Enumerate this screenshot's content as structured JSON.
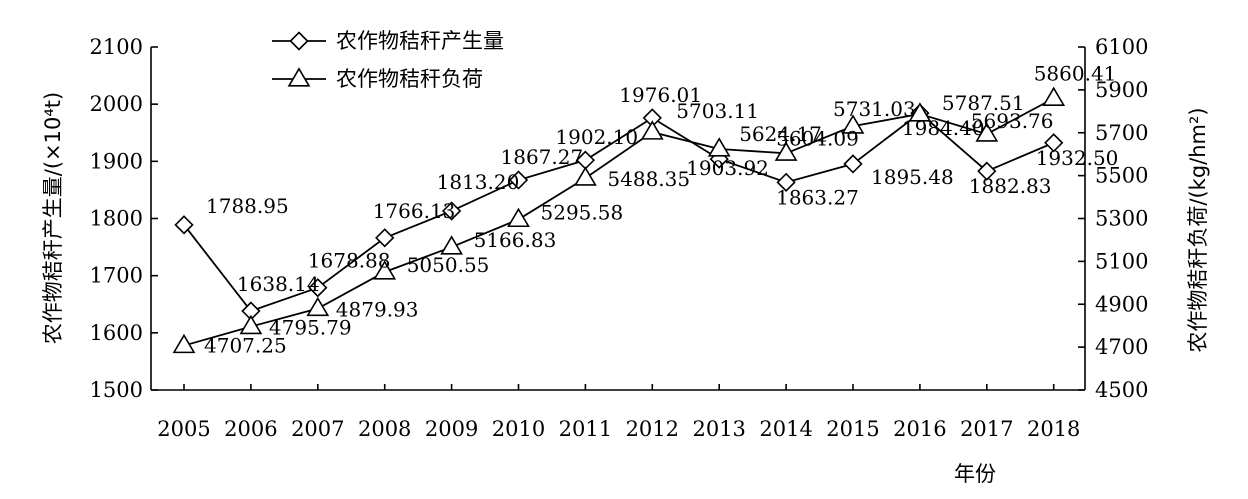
{
  "chart_data": {
    "type": "line",
    "title": "",
    "xlabel": "年份",
    "ylabel_left": "农作物秸秆产生量/(×10⁴t)",
    "ylabel_right": "农作物秸秆负荷/(kg/hm²)",
    "x": [
      "2005",
      "2006",
      "2007",
      "2008",
      "2009",
      "2010",
      "2011",
      "2012",
      "2013",
      "2014",
      "2015",
      "2016",
      "2017",
      "2018"
    ],
    "ylim_left": [
      1500,
      2100
    ],
    "yticks_left": [
      "1500",
      "1600",
      "1700",
      "1800",
      "1900",
      "2000",
      "2100"
    ],
    "ylim_right": [
      4500,
      6100
    ],
    "yticks_right": [
      "4500",
      "4700",
      "4900",
      "5100",
      "5300",
      "5500",
      "5700",
      "5900",
      "6100"
    ],
    "grid": false,
    "legend_position": "top-left",
    "series": [
      {
        "name": "农作物秸秆产生量",
        "axis": "left",
        "marker": "diamond",
        "values": [
          1788.95,
          1638.14,
          1678.88,
          1766.13,
          1813.2,
          1867.27,
          1902.1,
          1976.01,
          1903.92,
          1863.27,
          1895.48,
          1984.4,
          1882.83,
          1932.5
        ],
        "labels": [
          "1788.95",
          "1638.14",
          "1678.88",
          "1766.13",
          "1813.20",
          "1867.27",
          "1902.10",
          "1976.01",
          "1903.92",
          "1863.27",
          "1895.48",
          "1984.40",
          "1882.83",
          "1932.50"
        ]
      },
      {
        "name": "农作物秸秆负荷",
        "axis": "right",
        "marker": "triangle",
        "values": [
          4707.25,
          4795.79,
          4879.93,
          5050.55,
          5166.83,
          5295.58,
          5488.35,
          5703.11,
          5624.17,
          5604.09,
          5731.03,
          5787.51,
          5693.76,
          5860.41
        ],
        "labels": [
          "4707.25",
          "4795.79",
          "4879.93",
          "5050.55",
          "5166.83",
          "5295.58",
          "5488.35",
          "5703.11",
          "5624.17",
          "5604.09",
          "5731.03",
          "5787.51",
          "5693.76",
          "5860.41"
        ]
      }
    ]
  }
}
